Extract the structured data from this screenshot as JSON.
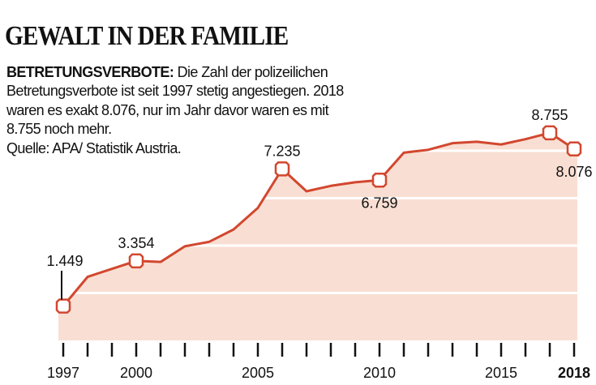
{
  "title": "GEWALT IN DER FAMILIE",
  "description": {
    "lead": "BETRETUNGSVERBOTE:",
    "text": " Die Zahl der polizeilichen Betretungsverbote ist seit 1997 stetig angestiegen. 2018 waren es exakt 8.076, nur im Jahr davor waren es mit 8.755 noch mehr.",
    "source": "Quelle: APA/ Statistik Austria."
  },
  "chart_data": {
    "type": "area",
    "x": [
      1997,
      1998,
      1999,
      2000,
      2001,
      2002,
      2003,
      2004,
      2005,
      2006,
      2007,
      2008,
      2009,
      2010,
      2011,
      2012,
      2013,
      2014,
      2015,
      2016,
      2017,
      2018
    ],
    "values": [
      1449,
      2680,
      3020,
      3354,
      3310,
      3970,
      4160,
      4680,
      5590,
      7235,
      6290,
      6520,
      6670,
      6759,
      7920,
      8040,
      8320,
      8380,
      8265,
      8490,
      8755,
      8076
    ],
    "ylim": [
      0,
      10000
    ],
    "grid_values": [
      2000,
      4000,
      6000,
      8000
    ],
    "grid": true,
    "x_tick_labels": [
      {
        "year": 1997,
        "label": "1997"
      },
      {
        "year": 2000,
        "label": "2000"
      },
      {
        "year": 2005,
        "label": "2005"
      },
      {
        "year": 2010,
        "label": "2010"
      },
      {
        "year": 2015,
        "label": "2015"
      },
      {
        "year": 2018,
        "label": "2018",
        "bold": true
      }
    ],
    "annotations": [
      {
        "year": 1997,
        "label": "1.449",
        "position": "above"
      },
      {
        "year": 2000,
        "label": "3.354",
        "position": "above"
      },
      {
        "year": 2006,
        "label": "7.235",
        "position": "above"
      },
      {
        "year": 2010,
        "label": "6.759",
        "position": "below"
      },
      {
        "year": 2017,
        "label": "8.755",
        "position": "above"
      },
      {
        "year": 2018,
        "label": "8.076",
        "position": "below"
      }
    ],
    "colors": {
      "line": "#d2472f",
      "fill": "#f9dfd3",
      "grid": "#ffffff"
    }
  }
}
